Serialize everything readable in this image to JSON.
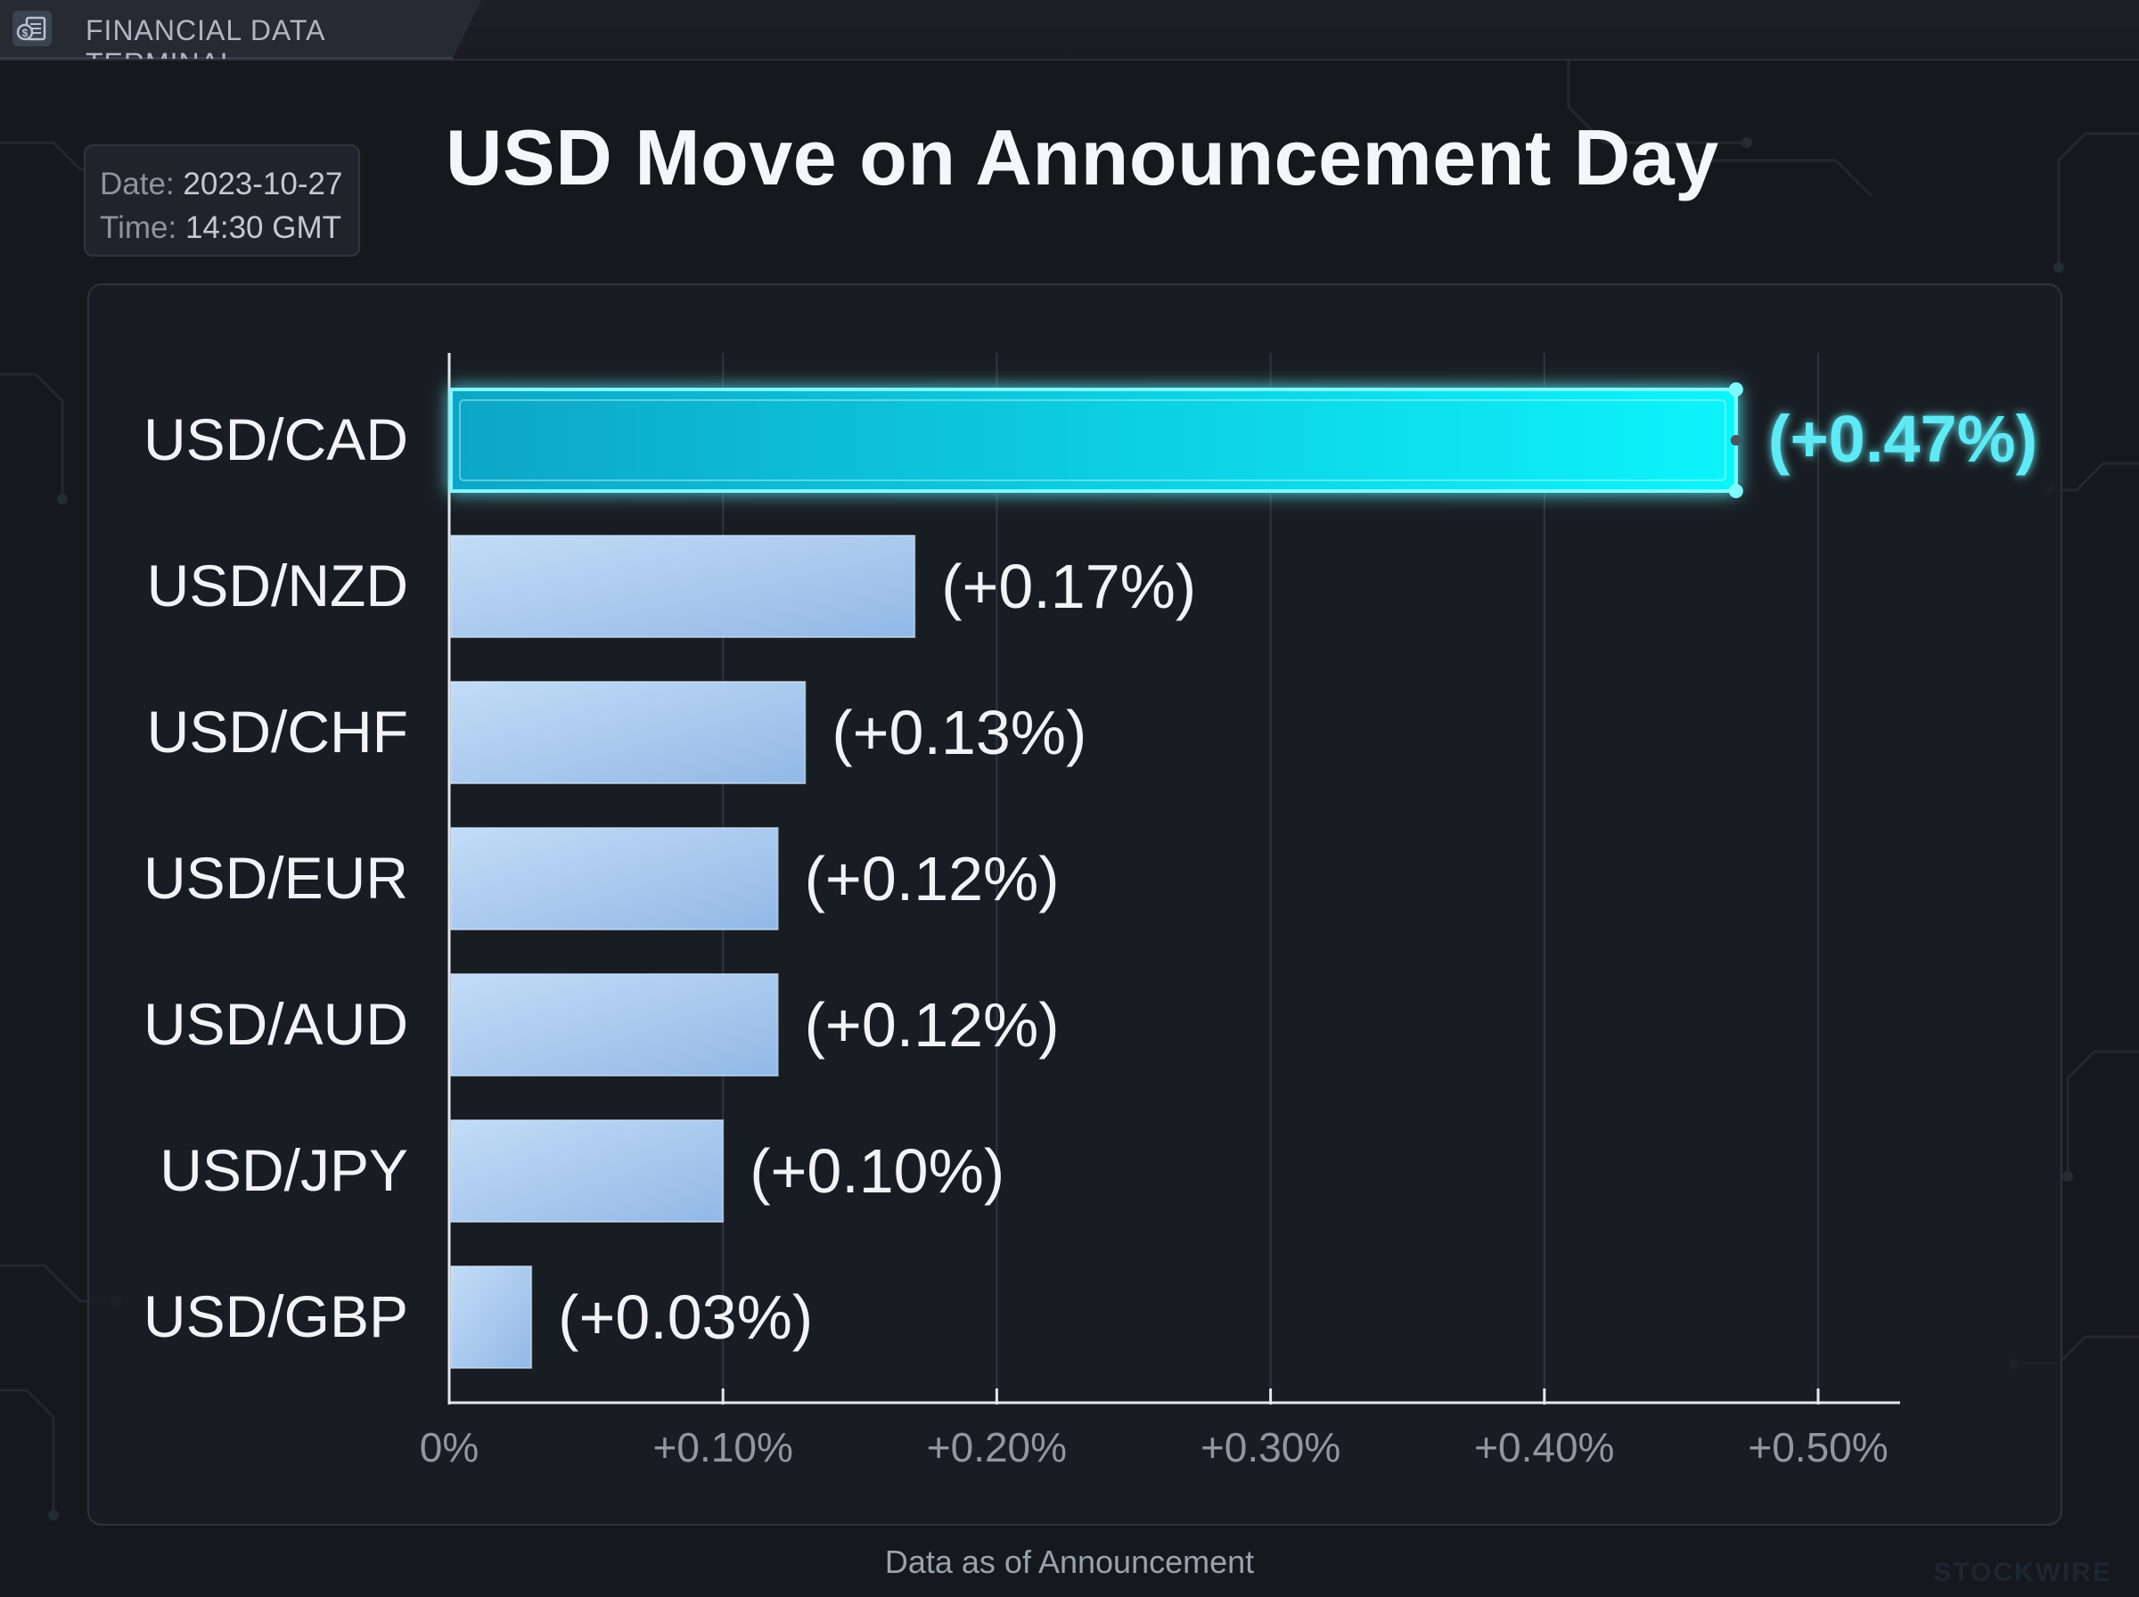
{
  "app": {
    "tab_label": "FINANCIAL DATA TERMINAL",
    "tab_icon": "money-document-icon"
  },
  "timestamp": {
    "date_key": "Date:",
    "date_value": "2023-10-27",
    "time_key": "Time:",
    "time_value": "14:30 GMT"
  },
  "footer": "Data as of Announcement",
  "watermark": "STOCKWIRE",
  "colors": {
    "highlight": "#12e6f2",
    "bar": "#aecdf2",
    "label_highlight": "#5fe9f5"
  },
  "chart_data": {
    "type": "bar",
    "orientation": "horizontal",
    "title": "USD Move on Announcement Day",
    "categories": [
      "USD/CAD",
      "USD/NZD",
      "USD/CHF",
      "USD/EUR",
      "USD/AUD",
      "USD/JPY",
      "USD/GBP"
    ],
    "values": [
      0.47,
      0.17,
      0.13,
      0.12,
      0.12,
      0.1,
      0.03
    ],
    "value_labels": [
      "(+0.47%)",
      "(+0.17%)",
      "(+0.13%)",
      "(+0.12%)",
      "(+0.12%)",
      "(+0.10%)",
      "(+0.03%)"
    ],
    "highlighted": "USD/CAD",
    "unit": "%",
    "xlim": [
      0,
      0.5
    ],
    "x_ticks": [
      0,
      0.1,
      0.2,
      0.3,
      0.4,
      0.5
    ],
    "x_tick_labels": [
      "0%",
      "+0.10%",
      "+0.20%",
      "+0.30%",
      "+0.40%",
      "+0.50%"
    ],
    "grid": "vertical",
    "xlabel": "",
    "ylabel": ""
  }
}
